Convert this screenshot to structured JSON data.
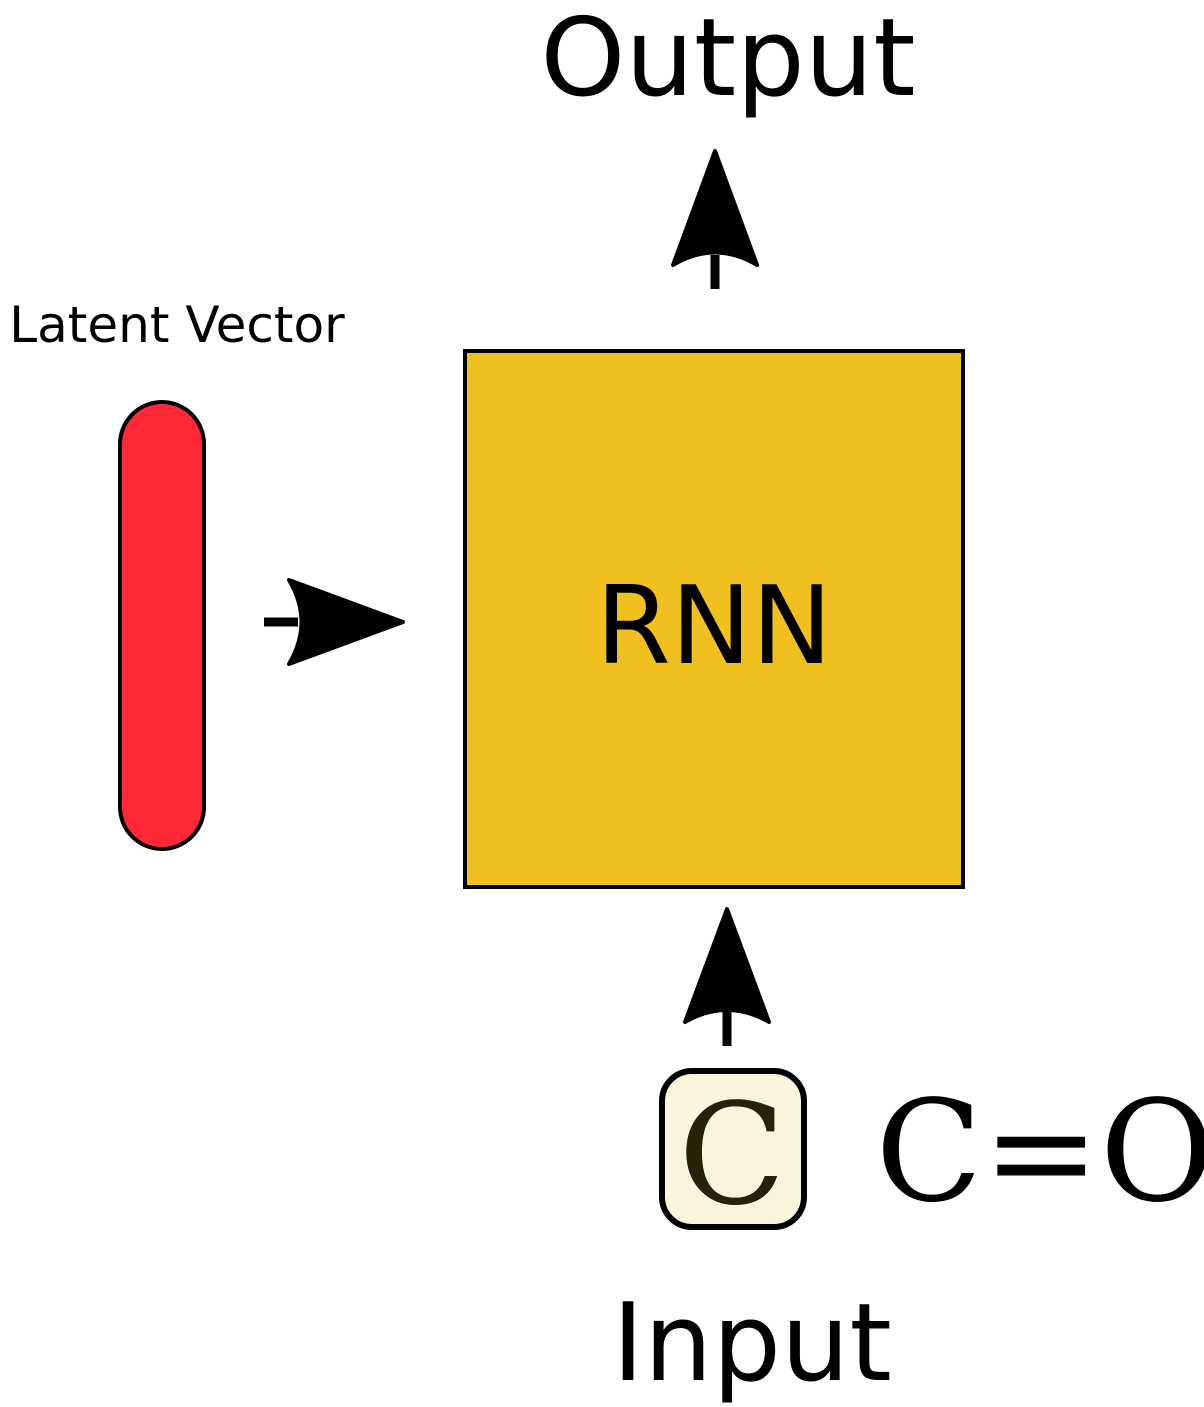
{
  "labels": {
    "output": "Output",
    "latent_vector": "Latent Vector",
    "rnn": "RNN",
    "token": "C",
    "sequence": "C=O",
    "input": "Input"
  },
  "colors": {
    "latent_vector_fill": "#ff2837",
    "rnn_fill": "#f0c020",
    "token_fill": "#faf4dc",
    "token_text": "#2a2008",
    "stroke": "#000000"
  },
  "icons": {
    "latent_to_rnn": "arrow-right-icon",
    "rnn_to_output": "arrow-up-icon",
    "input_to_rnn": "arrow-up-icon"
  }
}
